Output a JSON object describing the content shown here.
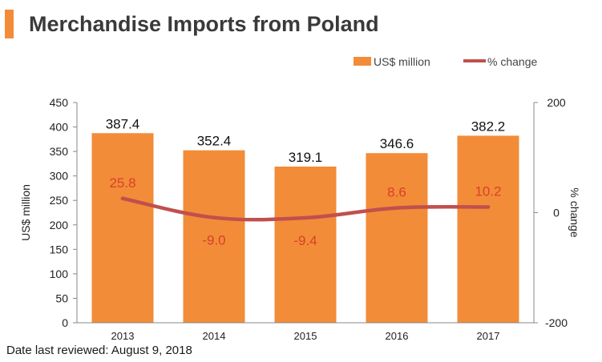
{
  "title": "Merchandise Imports from Poland",
  "footnote": "Date last reviewed: August 9, 2018",
  "colors": {
    "accent": "#f28c38",
    "bar": "#f28c38",
    "line": "#c0504d",
    "line_label": "#d9402b",
    "axis": "#888888",
    "text": "#222222"
  },
  "legend": {
    "bar_label": "US$ million",
    "line_label": "% change"
  },
  "chart_data": {
    "type": "bar",
    "title": "Merchandise Imports from Poland",
    "categories": [
      "2013",
      "2014",
      "2015",
      "2016",
      "2017"
    ],
    "series": [
      {
        "name": "US$ million",
        "type": "bar",
        "axis": "left",
        "values": [
          387.4,
          352.4,
          319.1,
          346.6,
          382.2
        ],
        "labels": [
          "387.4",
          "352.4",
          "319.1",
          "346.6",
          "382.2"
        ]
      },
      {
        "name": "% change",
        "type": "line",
        "axis": "right",
        "values": [
          25.8,
          -9.0,
          -9.4,
          8.6,
          10.2
        ],
        "labels": [
          "25.8",
          "-9.0",
          "-9.4",
          "8.6",
          "10.2"
        ]
      }
    ],
    "ylabel": "US$ million",
    "ylim": [
      0,
      450
    ],
    "yticks": [
      "0",
      "50",
      "100",
      "150",
      "200",
      "250",
      "300",
      "350",
      "400",
      "450"
    ],
    "y2label": "% change",
    "y2lim": [
      -200,
      200
    ],
    "y2ticks": [
      "-200",
      "0",
      "200"
    ],
    "grid": false,
    "legend_position": "top-right"
  }
}
